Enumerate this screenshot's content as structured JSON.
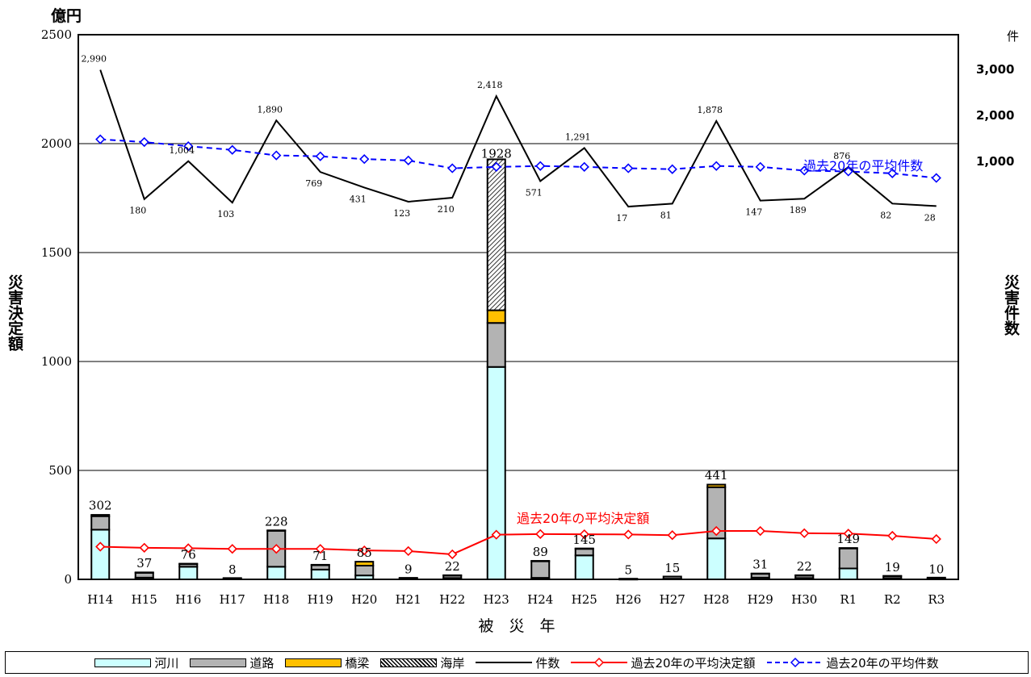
{
  "chart_data": {
    "type": "bar",
    "categories": [
      "H14",
      "H15",
      "H16",
      "H17",
      "H18",
      "H19",
      "H20",
      "H21",
      "H22",
      "H23",
      "H24",
      "H25",
      "H26",
      "H27",
      "H28",
      "H29",
      "H30",
      "R1",
      "R2",
      "R3"
    ],
    "totals": [
      302,
      37,
      76,
      8,
      228,
      71,
      85,
      9,
      22,
      1928,
      89,
      145,
      5,
      15,
      441,
      31,
      22,
      149,
      19,
      10
    ],
    "stack_series": [
      {
        "name": "河川",
        "color": "#ccffff",
        "values": [
          228,
          8,
          58,
          2,
          58,
          45,
          18,
          2,
          6,
          975,
          7,
          110,
          1,
          3,
          188,
          8,
          6,
          50,
          5,
          3
        ]
      },
      {
        "name": "道路",
        "color": "#b3b3b3",
        "values": [
          62,
          22,
          12,
          4,
          165,
          20,
          45,
          5,
          12,
          202,
          76,
          30,
          2,
          10,
          235,
          18,
          12,
          92,
          10,
          5
        ]
      },
      {
        "name": "橋梁",
        "color": "#ffc000",
        "values": [
          6,
          2,
          2,
          0,
          2,
          2,
          18,
          0,
          1,
          58,
          2,
          2,
          0,
          0,
          12,
          1,
          1,
          2,
          1,
          0
        ]
      },
      {
        "name": "海岸",
        "color": "#ffffff",
        "pattern": "hatch",
        "values": [
          0,
          0,
          0,
          0,
          0,
          0,
          0,
          0,
          0,
          693,
          0,
          0,
          0,
          0,
          0,
          0,
          0,
          0,
          0,
          0
        ]
      }
    ],
    "line_series": [
      {
        "name": "件数",
        "color": "#000000",
        "axis": "right",
        "marker": "none",
        "values": [
          2990,
          180,
          1004,
          103,
          1890,
          769,
          431,
          123,
          210,
          2418,
          571,
          1291,
          17,
          81,
          1878,
          147,
          189,
          876,
          82,
          28
        ],
        "labels": [
          "2,990",
          "180",
          "1,004",
          "103",
          "1,890",
          "769",
          "431",
          "123",
          "210",
          "2,418",
          "571",
          "1,291",
          "17",
          "81",
          "1,878",
          "147",
          "189",
          "876",
          "82",
          "28"
        ]
      },
      {
        "name": "過去20年の平均決定額",
        "color": "#ff0000",
        "axis": "left",
        "marker": "diamond",
        "values": [
          150,
          145,
          143,
          140,
          140,
          140,
          133,
          130,
          115,
          205,
          208,
          207,
          206,
          203,
          222,
          222,
          212,
          210,
          200,
          185
        ]
      },
      {
        "name": "過去20年の平均件数",
        "color": "#0000ff",
        "axis": "right",
        "marker": "diamond",
        "dash": true,
        "values": [
          1480,
          1420,
          1330,
          1250,
          1130,
          1110,
          1050,
          1020,
          850,
          880,
          900,
          880,
          850,
          830,
          900,
          880,
          800,
          780,
          740,
          640
        ]
      }
    ],
    "ylabel_left": "災害決定額",
    "yunit_left": "億円",
    "ylim_left": [
      0,
      2500
    ],
    "yticks_left": [
      "0",
      "500",
      "1000",
      "1500",
      "2000",
      "2500"
    ],
    "ylabel_right": "災害件数",
    "yunit_right": "件",
    "yticks_right": [
      "1,000",
      "2,000",
      "3,000"
    ],
    "xlabel": "被　災　年",
    "annotations": {
      "avg_amount": "過去20年の平均決定額",
      "avg_count": "過去20年の平均件数"
    },
    "grid": true
  }
}
